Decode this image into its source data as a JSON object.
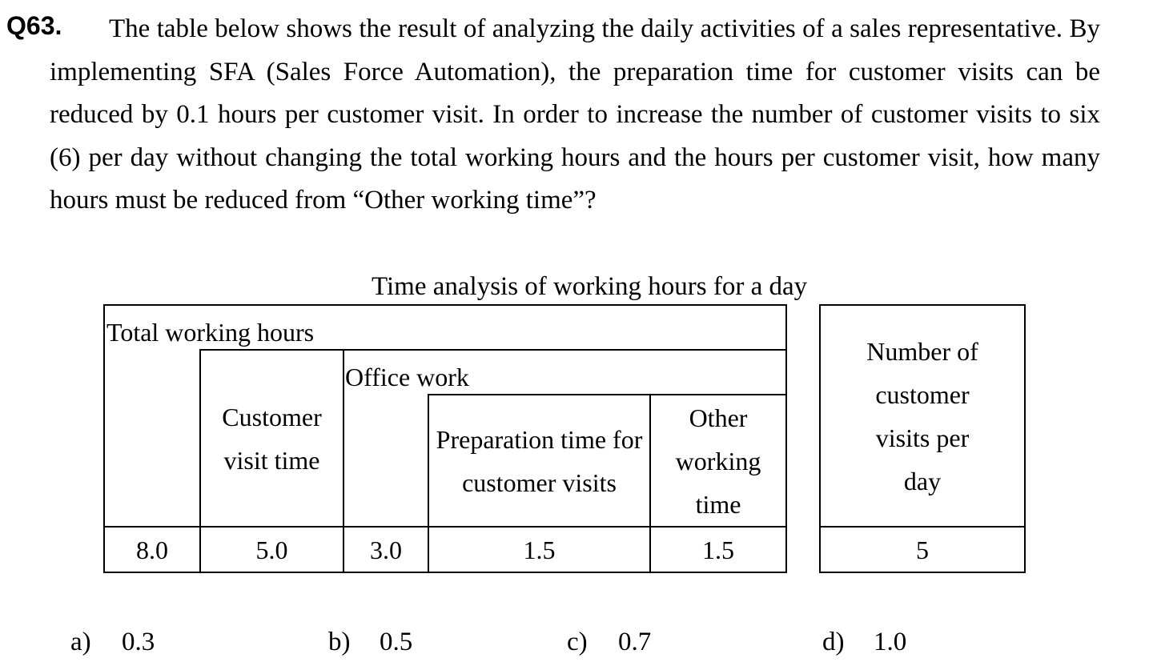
{
  "question": {
    "number": "Q63.",
    "text": "The table below shows the result of analyzing the daily activities of a sales representative. By implementing SFA (Sales Force Automation), the preparation time for customer visits can be reduced by 0.1 hours per customer visit. In order to increase the number of customer visits to six (6) per day without changing the total working hours and the hours per customer visit, how many hours must be reduced from “Other working time”?"
  },
  "table": {
    "caption": "Time analysis of working hours for a day",
    "headers": {
      "total_working_hours": "Total working hours",
      "customer_visit_time": "Customer visit time",
      "office_work": "Office work",
      "preparation_time": "Preparation time for customer visits",
      "other_working_time": "Other working time",
      "visits_per_day": "Number of customer visits per day"
    },
    "values": {
      "total_working_hours": "8.0",
      "customer_visit_time": "5.0",
      "office_work": "3.0",
      "preparation_time": "1.5",
      "other_working_time": "1.5",
      "visits_per_day": "5"
    }
  },
  "options": [
    {
      "label": "a)",
      "value": "0.3"
    },
    {
      "label": "b)",
      "value": "0.5"
    },
    {
      "label": "c)",
      "value": "0.7"
    },
    {
      "label": "d)",
      "value": "1.0"
    }
  ]
}
